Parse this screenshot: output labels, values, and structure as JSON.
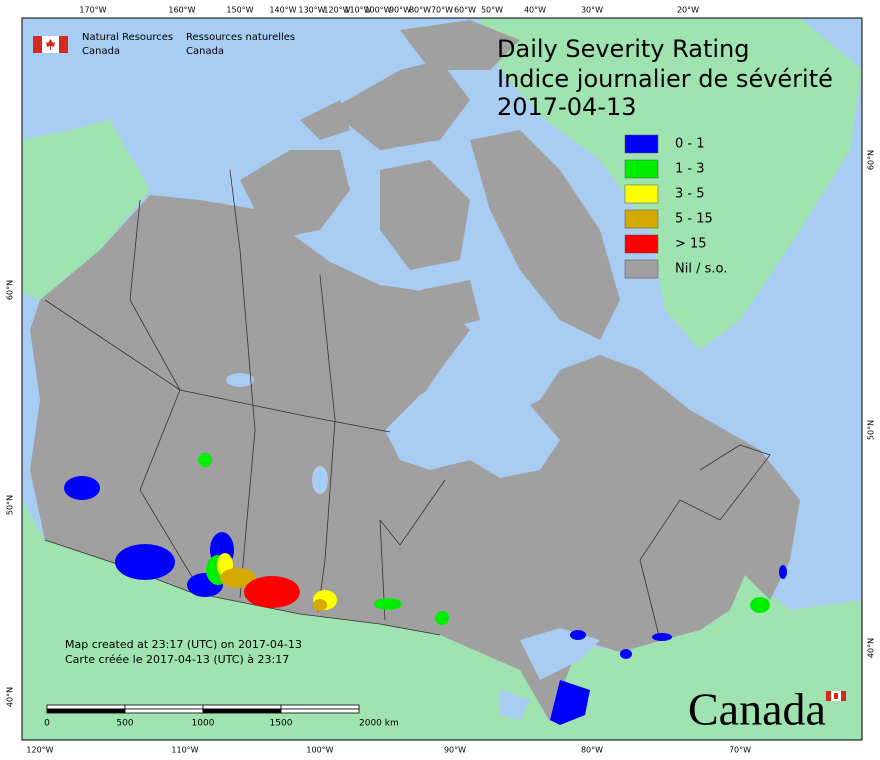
{
  "title": "Daily Severity Rating",
  "title_fr": "Indice journalier de sévérité",
  "date": "2017-04-13",
  "agency": {
    "en_line1": "Natural Resources",
    "en_line2": "Canada",
    "fr_line1": "Ressources naturelles",
    "fr_line2": "Canada"
  },
  "legend": [
    {
      "label": "0 - 1",
      "color": "#0000ff"
    },
    {
      "label": "1 - 3",
      "color": "#00ee00"
    },
    {
      "label": "3 - 5",
      "color": "#ffff00"
    },
    {
      "label": "5 - 15",
      "color": "#d4aa00"
    },
    {
      "label": "> 15",
      "color": "#ff0000"
    },
    {
      "label": "Nil / s.o.",
      "color": "#a0a0a0"
    }
  ],
  "top_longitudes": [
    "170°W",
    "160°W",
    "150°W",
    "140°W",
    "130°W",
    "120°W",
    "110°W",
    "100°W",
    "90°W",
    "80°W",
    "70°W",
    "60°W",
    "50°W",
    "40°W",
    "30°W",
    "20°W"
  ],
  "bottom_longitudes": [
    "120°W",
    "110°W",
    "100°W",
    "90°W",
    "80°W",
    "70°W"
  ],
  "left_latitudes": [
    "60°N",
    "50°N",
    "40°N"
  ],
  "right_latitudes": [
    "60°N",
    "50°N",
    "40°N"
  ],
  "credits": [
    "Map created at 23:17 (UTC) on 2017-04-13",
    "Carte créée le 2017-04-13 (UTC) à 23:17"
  ],
  "scale_bar": [
    "0",
    "500",
    "1000",
    "1500",
    "2000 km"
  ],
  "wordmark": "Canada"
}
